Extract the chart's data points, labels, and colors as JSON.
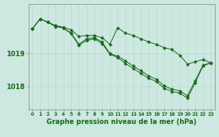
{
  "xlabel": "Graphe pression niveau de la mer (hPa)",
  "background_color": "#cce8e0",
  "plot_bg_color": "#cce8e0",
  "grid_color": "#b8d8cc",
  "line_color": "#1a6b1a",
  "marker_color": "#1a6b1a",
  "x": [
    0,
    1,
    2,
    3,
    4,
    5,
    6,
    7,
    8,
    9,
    10,
    11,
    12,
    13,
    14,
    15,
    16,
    17,
    18,
    19,
    20,
    21,
    22,
    23
  ],
  "y_top": [
    1019.75,
    1020.05,
    1019.95,
    1019.85,
    1019.8,
    1019.72,
    1019.52,
    1019.55,
    1019.55,
    1019.48,
    1019.28,
    1019.78,
    1019.62,
    1019.55,
    1019.45,
    1019.35,
    1019.28,
    1019.18,
    1019.12,
    1018.95,
    1018.68,
    1018.75,
    1018.82,
    1018.72
  ],
  "y_mid": [
    1019.75,
    1020.05,
    1019.95,
    1019.82,
    1019.78,
    1019.62,
    1019.28,
    1019.45,
    1019.48,
    1019.35,
    1019.0,
    1018.92,
    1018.78,
    1018.62,
    1018.48,
    1018.32,
    1018.22,
    1018.02,
    1017.92,
    1017.87,
    1017.72,
    1018.18,
    1018.65,
    1018.72
  ],
  "y_bot": [
    1019.75,
    1020.05,
    1019.95,
    1019.82,
    1019.78,
    1019.6,
    1019.25,
    1019.4,
    1019.45,
    1019.3,
    1018.98,
    1018.88,
    1018.7,
    1018.55,
    1018.4,
    1018.25,
    1018.15,
    1017.95,
    1017.85,
    1017.8,
    1017.65,
    1018.12,
    1018.62,
    1018.72
  ],
  "yticks": [
    1018.0,
    1019.0
  ],
  "ylim": [
    1017.3,
    1020.5
  ],
  "xlim": [
    -0.5,
    23.5
  ],
  "xtick_labels": [
    "0",
    "1",
    "2",
    "3",
    "4",
    "5",
    "6",
    "7",
    "8",
    "9",
    "10",
    "11",
    "12",
    "13",
    "14",
    "15",
    "16",
    "17",
    "18",
    "19",
    "20",
    "21",
    "22",
    "23"
  ],
  "xlabel_fontsize": 7,
  "ytick_fontsize": 7,
  "xtick_fontsize": 5,
  "marker_size": 2.5,
  "line_width": 0.8
}
